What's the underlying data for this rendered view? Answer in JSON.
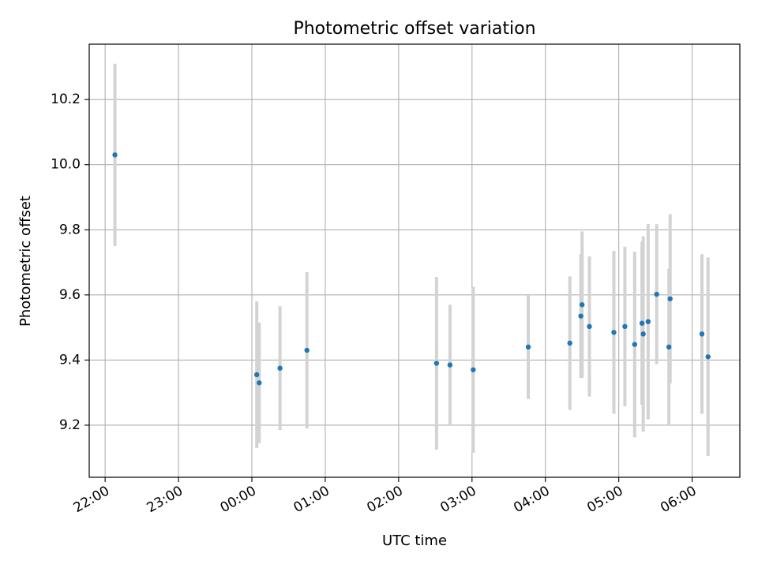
{
  "chart_data": {
    "type": "scatter",
    "title": "Photometric offset variation",
    "xlabel": "UTC time",
    "ylabel": "Photometric offset",
    "grid": true,
    "xlim": [
      "21:47",
      "06:39"
    ],
    "ylim": [
      9.04,
      10.37
    ],
    "x_ticks": [
      "22:00",
      "23:00",
      "00:00",
      "01:00",
      "02:00",
      "03:00",
      "04:00",
      "05:00",
      "06:00"
    ],
    "y_ticks": [
      "9.2",
      "9.4",
      "9.6",
      "9.8",
      "10.0",
      "10.2"
    ],
    "x_tick_rotation": 30,
    "colors": {
      "points": "#1f77b4",
      "errorbars": "#d3d3d3",
      "grid": "#b0b0b0"
    },
    "points": [
      {
        "x": "22:08",
        "y": 10.03,
        "yerr": 0.28
      },
      {
        "x": "00:04",
        "y": 9.355,
        "yerr": 0.225
      },
      {
        "x": "00:06",
        "y": 9.33,
        "yerr": 0.185
      },
      {
        "x": "00:23",
        "y": 9.375,
        "yerr": 0.19
      },
      {
        "x": "00:45",
        "y": 9.43,
        "yerr": 0.24
      },
      {
        "x": "02:31",
        "y": 9.39,
        "yerr": 0.265
      },
      {
        "x": "02:42",
        "y": 9.385,
        "yerr": 0.185
      },
      {
        "x": "03:01",
        "y": 9.37,
        "yerr": 0.255
      },
      {
        "x": "03:46",
        "y": 9.44,
        "yerr": 0.16
      },
      {
        "x": "04:20",
        "y": 9.452,
        "yerr": 0.205
      },
      {
        "x": "04:29",
        "y": 9.535,
        "yerr": 0.19
      },
      {
        "x": "04:30",
        "y": 9.57,
        "yerr": 0.225
      },
      {
        "x": "04:36",
        "y": 9.503,
        "yerr": 0.215
      },
      {
        "x": "04:56",
        "y": 9.485,
        "yerr": 0.25
      },
      {
        "x": "05:05",
        "y": 9.503,
        "yerr": 0.245
      },
      {
        "x": "05:13",
        "y": 9.448,
        "yerr": 0.285
      },
      {
        "x": "05:19",
        "y": 9.513,
        "yerr": 0.25
      },
      {
        "x": "05:20",
        "y": 9.48,
        "yerr": 0.3
      },
      {
        "x": "05:24",
        "y": 9.518,
        "yerr": 0.3
      },
      {
        "x": "05:31",
        "y": 9.602,
        "yerr": 0.215
      },
      {
        "x": "05:41",
        "y": 9.44,
        "yerr": 0.24
      },
      {
        "x": "05:42",
        "y": 9.588,
        "yerr": 0.26
      },
      {
        "x": "06:08",
        "y": 9.48,
        "yerr": 0.245
      },
      {
        "x": "06:13",
        "y": 9.41,
        "yerr": 0.305
      }
    ]
  }
}
